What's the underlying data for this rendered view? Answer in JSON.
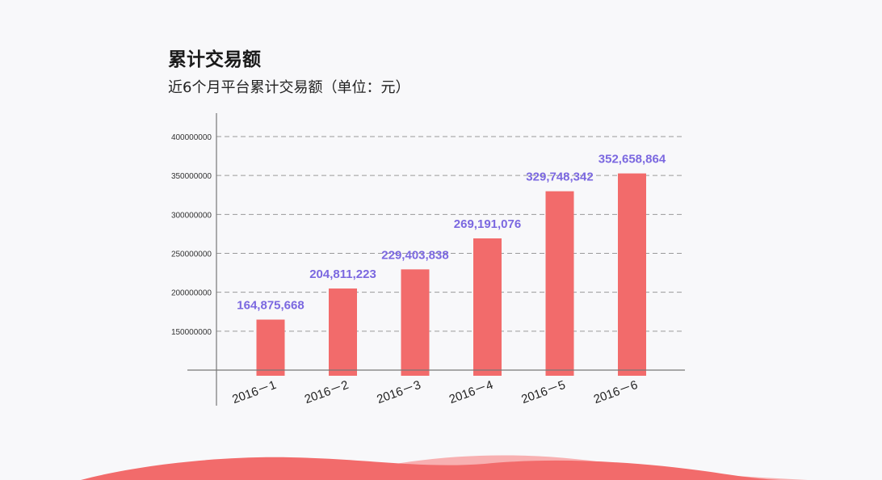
{
  "header": {
    "title": "累计交易额",
    "subtitle": "近6个月平台累计交易额（单位：元）"
  },
  "colors": {
    "bar": "#f26b6b",
    "data_label": "#7b68e0",
    "wave_dark": "#f26b6b",
    "wave_light": "#f8a3a3"
  },
  "chart_data": {
    "type": "bar",
    "categories": [
      "2016－1",
      "2016－2",
      "2016－3",
      "2016－4",
      "2016－5",
      "2016－6"
    ],
    "values": [
      164875668,
      204811223,
      229403838,
      269191076,
      329748342,
      352658864
    ],
    "data_labels": [
      "164,875,668",
      "204,811,223",
      "229,403,838",
      "269,191,076",
      "329,748,342",
      "352,658,864"
    ],
    "yticks": [
      "150000000",
      "200000000",
      "250000000",
      "300000000",
      "350000000",
      "400000000"
    ],
    "ytick_values": [
      150000000,
      200000000,
      250000000,
      300000000,
      350000000,
      400000000
    ],
    "ylim": [
      100000000,
      400000000
    ],
    "grid": "dashed"
  }
}
